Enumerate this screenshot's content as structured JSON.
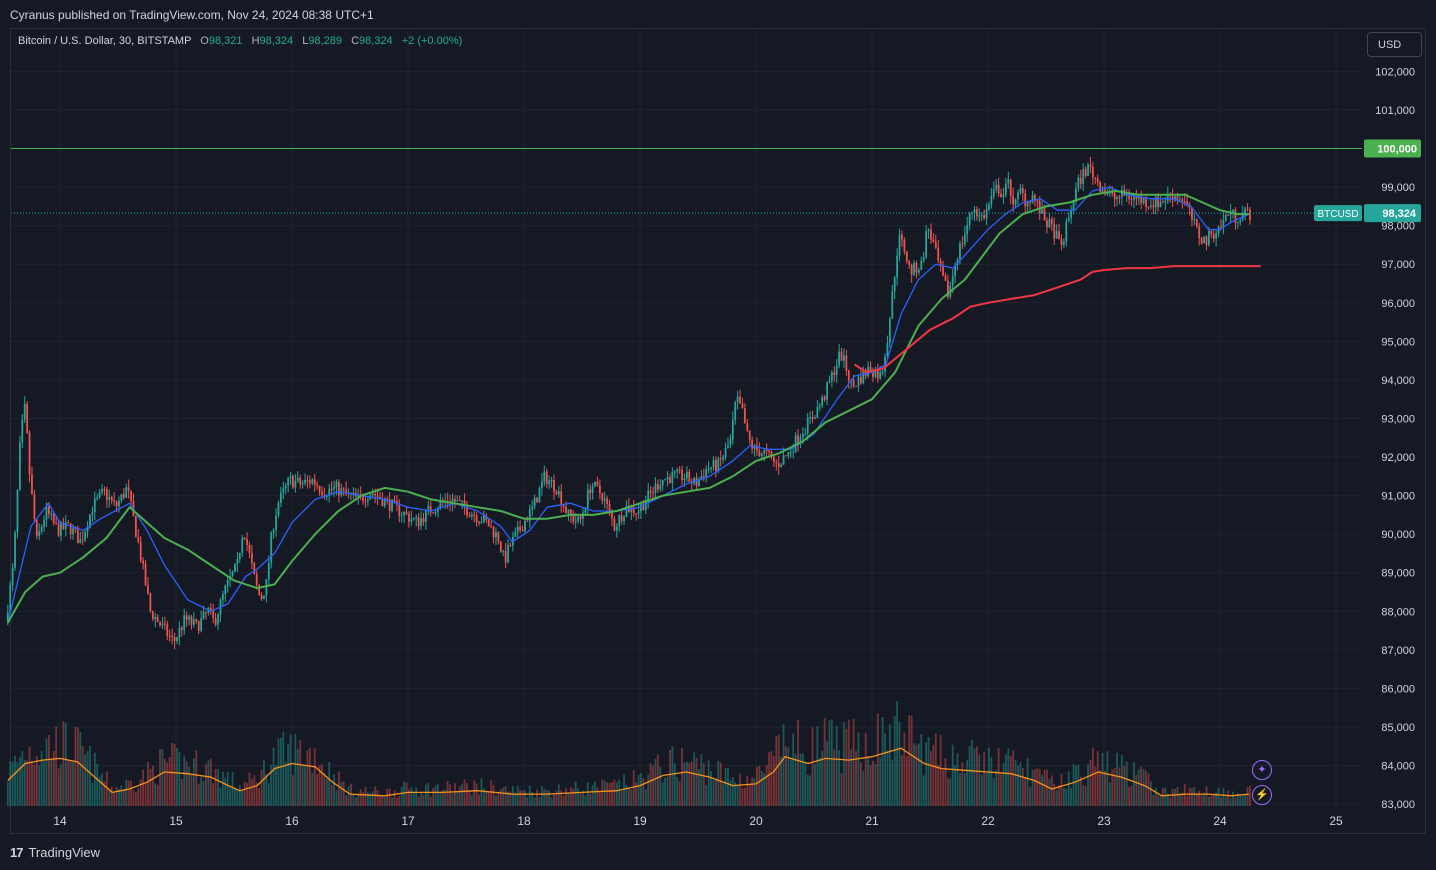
{
  "header": {
    "publisher_text": "Cyranus published on TradingView.com, Nov 24, 2024 08:38 UTC+1"
  },
  "legend": {
    "symbol_text": "Bitcoin / U.S. Dollar, 30, BITSTAMP",
    "o_label": "O",
    "o_value": "98,321",
    "h_label": "H",
    "h_value": "98,324",
    "l_label": "L",
    "l_value": "98,289",
    "c_label": "C",
    "c_value": "98,324",
    "change": "+2 (+0.00%)"
  },
  "currency_button": "USD",
  "footer": {
    "logo_mark": "17",
    "brand": "TradingView"
  },
  "tools": {
    "spark_icon": "✦",
    "bolt_icon": "⚡"
  },
  "colors": {
    "up": "#26a69a",
    "down": "#ef5350",
    "ma_fast": "#2962ff",
    "ma_mid": "#4caf50",
    "ma_slow": "#f23645",
    "volume_ma": "#f7931a",
    "level_line": "#4caf50",
    "grid": "#1f2330"
  },
  "chart_data": {
    "type": "candlestick",
    "symbol": "BTCUSD",
    "exchange": "BITSTAMP",
    "interval": "30",
    "ylim": [
      82950,
      103100
    ],
    "y_ticks": [
      {
        "value": 102000,
        "label": "102,000"
      },
      {
        "value": 101000,
        "label": "101,000"
      },
      {
        "value": 99000,
        "label": "99,000"
      },
      {
        "value": 98000,
        "label": "98,000"
      },
      {
        "value": 97000,
        "label": "97,000"
      },
      {
        "value": 96000,
        "label": "96,000"
      },
      {
        "value": 95000,
        "label": "95,000"
      },
      {
        "value": 94000,
        "label": "94,000"
      },
      {
        "value": 93000,
        "label": "93,000"
      },
      {
        "value": 92000,
        "label": "92,000"
      },
      {
        "value": 91000,
        "label": "91,000"
      },
      {
        "value": 90000,
        "label": "90,000"
      },
      {
        "value": 89000,
        "label": "89,000"
      },
      {
        "value": 88000,
        "label": "88,000"
      },
      {
        "value": 87000,
        "label": "87,000"
      },
      {
        "value": 86000,
        "label": "86,000"
      },
      {
        "value": 85000,
        "label": "85,000"
      },
      {
        "value": 84000,
        "label": "84,000"
      },
      {
        "value": 83000,
        "label": "83,000"
      }
    ],
    "x_ticks": [
      "14",
      "15",
      "16",
      "17",
      "18",
      "19",
      "20",
      "21",
      "22",
      "23",
      "24",
      "25"
    ],
    "horizontal_level": {
      "value": 100000,
      "label": "100,000"
    },
    "last_price": {
      "value": 98324,
      "label": "98,324",
      "tag": "BTCUSD"
    },
    "price_path": [
      [
        13.55,
        87700
      ],
      [
        13.62,
        89200
      ],
      [
        13.68,
        92500
      ],
      [
        13.72,
        93300
      ],
      [
        13.76,
        91500
      ],
      [
        13.82,
        89800
      ],
      [
        13.9,
        90600
      ],
      [
        14.0,
        90100
      ],
      [
        14.1,
        90200
      ],
      [
        14.2,
        89800
      ],
      [
        14.3,
        90700
      ],
      [
        14.4,
        91100
      ],
      [
        14.5,
        90700
      ],
      [
        14.6,
        91200
      ],
      [
        14.7,
        89700
      ],
      [
        14.8,
        88000
      ],
      [
        14.9,
        87600
      ],
      [
        15.0,
        87200
      ],
      [
        15.1,
        87800
      ],
      [
        15.2,
        87600
      ],
      [
        15.3,
        88000
      ],
      [
        15.35,
        87700
      ],
      [
        15.45,
        88600
      ],
      [
        15.55,
        89200
      ],
      [
        15.6,
        90200
      ],
      [
        15.7,
        88800
      ],
      [
        15.75,
        88300
      ],
      [
        15.8,
        88700
      ],
      [
        15.85,
        90100
      ],
      [
        15.9,
        90800
      ],
      [
        16.0,
        91400
      ],
      [
        16.1,
        91300
      ],
      [
        16.2,
        91400
      ],
      [
        16.3,
        91100
      ],
      [
        16.4,
        91200
      ],
      [
        16.5,
        91000
      ],
      [
        16.6,
        90900
      ],
      [
        16.7,
        91100
      ],
      [
        16.8,
        90900
      ],
      [
        16.9,
        90700
      ],
      [
        17.0,
        90500
      ],
      [
        17.1,
        90300
      ],
      [
        17.2,
        90600
      ],
      [
        17.3,
        90800
      ],
      [
        17.4,
        90900
      ],
      [
        17.5,
        90700
      ],
      [
        17.6,
        90500
      ],
      [
        17.7,
        90300
      ],
      [
        17.8,
        89900
      ],
      [
        17.85,
        89300
      ],
      [
        17.9,
        89700
      ],
      [
        18.0,
        90200
      ],
      [
        18.1,
        90700
      ],
      [
        18.2,
        91500
      ],
      [
        18.3,
        91200
      ],
      [
        18.4,
        90500
      ],
      [
        18.5,
        90300
      ],
      [
        18.6,
        91300
      ],
      [
        18.7,
        91000
      ],
      [
        18.8,
        90200
      ],
      [
        18.9,
        90700
      ],
      [
        19.0,
        90600
      ],
      [
        19.1,
        91000
      ],
      [
        19.2,
        91400
      ],
      [
        19.3,
        91500
      ],
      [
        19.4,
        91500
      ],
      [
        19.5,
        91300
      ],
      [
        19.6,
        91700
      ],
      [
        19.7,
        91800
      ],
      [
        19.8,
        92400
      ],
      [
        19.85,
        93500
      ],
      [
        19.9,
        93200
      ],
      [
        19.95,
        92500
      ],
      [
        20.0,
        92200
      ],
      [
        20.1,
        92100
      ],
      [
        20.2,
        91800
      ],
      [
        20.3,
        92100
      ],
      [
        20.4,
        92600
      ],
      [
        20.5,
        93000
      ],
      [
        20.6,
        93500
      ],
      [
        20.7,
        94300
      ],
      [
        20.75,
        94700
      ],
      [
        20.8,
        94300
      ],
      [
        20.85,
        93800
      ],
      [
        20.9,
        94000
      ],
      [
        21.0,
        94300
      ],
      [
        21.1,
        94100
      ],
      [
        21.15,
        95000
      ],
      [
        21.2,
        96300
      ],
      [
        21.25,
        97700
      ],
      [
        21.3,
        97400
      ],
      [
        21.35,
        96800
      ],
      [
        21.45,
        97000
      ],
      [
        21.5,
        98000
      ],
      [
        21.55,
        97500
      ],
      [
        21.62,
        96700
      ],
      [
        21.68,
        96200
      ],
      [
        21.75,
        97200
      ],
      [
        21.8,
        97600
      ],
      [
        21.85,
        98100
      ],
      [
        21.9,
        98500
      ],
      [
        21.95,
        98200
      ],
      [
        22.0,
        98300
      ],
      [
        22.05,
        98700
      ],
      [
        22.1,
        99000
      ],
      [
        22.15,
        98800
      ],
      [
        22.2,
        99100
      ],
      [
        22.25,
        98500
      ],
      [
        22.3,
        98900
      ],
      [
        22.35,
        98600
      ],
      [
        22.4,
        98800
      ],
      [
        22.5,
        98200
      ],
      [
        22.6,
        97800
      ],
      [
        22.65,
        97400
      ],
      [
        22.7,
        98000
      ],
      [
        22.75,
        98600
      ],
      [
        22.8,
        99100
      ],
      [
        22.85,
        99400
      ],
      [
        22.9,
        99500
      ],
      [
        22.95,
        99200
      ],
      [
        23.0,
        99000
      ],
      [
        23.1,
        98700
      ],
      [
        23.2,
        98800
      ],
      [
        23.3,
        98700
      ],
      [
        23.4,
        98600
      ],
      [
        23.5,
        98600
      ],
      [
        23.6,
        98800
      ],
      [
        23.7,
        98700
      ],
      [
        23.75,
        98400
      ],
      [
        23.8,
        98000
      ],
      [
        23.85,
        97700
      ],
      [
        23.9,
        97600
      ],
      [
        23.95,
        97800
      ],
      [
        24.0,
        97900
      ],
      [
        24.05,
        98100
      ],
      [
        24.1,
        98400
      ],
      [
        24.15,
        98200
      ],
      [
        24.2,
        98300
      ],
      [
        24.25,
        98324
      ]
    ],
    "ma_fast": [
      [
        13.55,
        87700
      ],
      [
        13.75,
        90200
      ],
      [
        13.9,
        90800
      ],
      [
        14.0,
        90300
      ],
      [
        14.2,
        90100
      ],
      [
        14.35,
        90400
      ],
      [
        14.6,
        90800
      ],
      [
        14.75,
        90100
      ],
      [
        14.9,
        89200
      ],
      [
        15.1,
        88300
      ],
      [
        15.3,
        88000
      ],
      [
        15.45,
        88200
      ],
      [
        15.6,
        88900
      ],
      [
        15.7,
        89100
      ],
      [
        15.85,
        89500
      ],
      [
        16.0,
        90300
      ],
      [
        16.2,
        90900
      ],
      [
        16.4,
        91100
      ],
      [
        16.6,
        91000
      ],
      [
        16.8,
        90900
      ],
      [
        17.0,
        90700
      ],
      [
        17.2,
        90600
      ],
      [
        17.4,
        90800
      ],
      [
        17.6,
        90600
      ],
      [
        17.8,
        90200
      ],
      [
        17.9,
        89800
      ],
      [
        18.05,
        90100
      ],
      [
        18.2,
        90700
      ],
      [
        18.4,
        90800
      ],
      [
        18.6,
        90600
      ],
      [
        18.8,
        90600
      ],
      [
        19.0,
        90700
      ],
      [
        19.2,
        91000
      ],
      [
        19.4,
        91300
      ],
      [
        19.6,
        91500
      ],
      [
        19.8,
        91900
      ],
      [
        19.95,
        92300
      ],
      [
        20.1,
        92200
      ],
      [
        20.3,
        92200
      ],
      [
        20.5,
        92600
      ],
      [
        20.7,
        93500
      ],
      [
        20.85,
        94100
      ],
      [
        21.0,
        94200
      ],
      [
        21.12,
        94400
      ],
      [
        21.25,
        95700
      ],
      [
        21.4,
        96600
      ],
      [
        21.55,
        97000
      ],
      [
        21.7,
        96900
      ],
      [
        21.85,
        97400
      ],
      [
        22.0,
        97900
      ],
      [
        22.15,
        98300
      ],
      [
        22.3,
        98600
      ],
      [
        22.45,
        98700
      ],
      [
        22.6,
        98400
      ],
      [
        22.75,
        98400
      ],
      [
        22.9,
        98900
      ],
      [
        23.05,
        99000
      ],
      [
        23.2,
        98800
      ],
      [
        23.4,
        98700
      ],
      [
        23.6,
        98700
      ],
      [
        23.75,
        98500
      ],
      [
        23.9,
        97900
      ],
      [
        24.0,
        97900
      ],
      [
        24.1,
        98100
      ],
      [
        24.25,
        98300
      ]
    ],
    "ma_mid": [
      [
        13.55,
        87700
      ],
      [
        13.7,
        88500
      ],
      [
        13.85,
        88900
      ],
      [
        14.0,
        89000
      ],
      [
        14.2,
        89400
      ],
      [
        14.4,
        89900
      ],
      [
        14.6,
        90700
      ],
      [
        14.75,
        90300
      ],
      [
        14.9,
        89900
      ],
      [
        15.1,
        89600
      ],
      [
        15.3,
        89200
      ],
      [
        15.5,
        88800
      ],
      [
        15.7,
        88600
      ],
      [
        15.85,
        88700
      ],
      [
        16.0,
        89300
      ],
      [
        16.2,
        90000
      ],
      [
        16.4,
        90600
      ],
      [
        16.6,
        91000
      ],
      [
        16.8,
        91200
      ],
      [
        17.0,
        91100
      ],
      [
        17.2,
        90900
      ],
      [
        17.4,
        90800
      ],
      [
        17.6,
        90700
      ],
      [
        17.8,
        90600
      ],
      [
        18.0,
        90400
      ],
      [
        18.2,
        90400
      ],
      [
        18.4,
        90500
      ],
      [
        18.6,
        90500
      ],
      [
        18.8,
        90600
      ],
      [
        19.0,
        90800
      ],
      [
        19.2,
        91000
      ],
      [
        19.4,
        91100
      ],
      [
        19.6,
        91200
      ],
      [
        19.8,
        91500
      ],
      [
        20.0,
        91900
      ],
      [
        20.2,
        92100
      ],
      [
        20.4,
        92400
      ],
      [
        20.6,
        92900
      ],
      [
        20.8,
        93200
      ],
      [
        21.0,
        93500
      ],
      [
        21.2,
        94200
      ],
      [
        21.4,
        95400
      ],
      [
        21.6,
        96100
      ],
      [
        21.8,
        96600
      ],
      [
        21.95,
        97200
      ],
      [
        22.1,
        97800
      ],
      [
        22.3,
        98300
      ],
      [
        22.5,
        98500
      ],
      [
        22.7,
        98600
      ],
      [
        22.9,
        98800
      ],
      [
        23.1,
        98900
      ],
      [
        23.3,
        98800
      ],
      [
        23.5,
        98800
      ],
      [
        23.7,
        98800
      ],
      [
        23.85,
        98600
      ],
      [
        24.0,
        98400
      ],
      [
        24.15,
        98300
      ],
      [
        24.25,
        98300
      ]
    ],
    "ma_slow": [
      [
        20.85,
        94400
      ],
      [
        20.95,
        94200
      ],
      [
        21.1,
        94300
      ],
      [
        21.3,
        94800
      ],
      [
        21.5,
        95300
      ],
      [
        21.7,
        95600
      ],
      [
        21.85,
        95900
      ],
      [
        22.0,
        96000
      ],
      [
        22.2,
        96100
      ],
      [
        22.4,
        96200
      ],
      [
        22.6,
        96400
      ],
      [
        22.8,
        96600
      ],
      [
        22.9,
        96800
      ],
      [
        23.0,
        96850
      ],
      [
        23.2,
        96900
      ],
      [
        23.4,
        96900
      ],
      [
        23.6,
        96950
      ],
      [
        23.8,
        96950
      ],
      [
        24.0,
        96950
      ],
      [
        24.2,
        96950
      ],
      [
        24.35,
        96950
      ]
    ],
    "volume": {
      "shown": true,
      "ma_color": "#f7931a",
      "ma_path": [
        [
          13.55,
          0.15
        ],
        [
          13.7,
          0.25
        ],
        [
          13.85,
          0.27
        ],
        [
          14.0,
          0.28
        ],
        [
          14.15,
          0.26
        ],
        [
          14.3,
          0.17
        ],
        [
          14.45,
          0.08
        ],
        [
          14.6,
          0.1
        ],
        [
          14.75,
          0.14
        ],
        [
          14.9,
          0.2
        ],
        [
          15.1,
          0.19
        ],
        [
          15.3,
          0.17
        ],
        [
          15.45,
          0.12
        ],
        [
          15.55,
          0.09
        ],
        [
          15.7,
          0.12
        ],
        [
          15.85,
          0.22
        ],
        [
          16.0,
          0.25
        ],
        [
          16.2,
          0.23
        ],
        [
          16.35,
          0.14
        ],
        [
          16.5,
          0.07
        ],
        [
          16.8,
          0.06
        ],
        [
          17.0,
          0.08
        ],
        [
          17.3,
          0.08
        ],
        [
          17.6,
          0.09
        ],
        [
          17.9,
          0.07
        ],
        [
          18.2,
          0.07
        ],
        [
          18.5,
          0.08
        ],
        [
          18.8,
          0.09
        ],
        [
          19.0,
          0.12
        ],
        [
          19.2,
          0.18
        ],
        [
          19.4,
          0.2
        ],
        [
          19.6,
          0.17
        ],
        [
          19.8,
          0.12
        ],
        [
          20.0,
          0.13
        ],
        [
          20.15,
          0.2
        ],
        [
          20.25,
          0.29
        ],
        [
          20.45,
          0.25
        ],
        [
          20.6,
          0.28
        ],
        [
          20.8,
          0.27
        ],
        [
          21.0,
          0.29
        ],
        [
          21.25,
          0.34
        ],
        [
          21.45,
          0.25
        ],
        [
          21.6,
          0.22
        ],
        [
          21.8,
          0.21
        ],
        [
          22.0,
          0.2
        ],
        [
          22.2,
          0.19
        ],
        [
          22.4,
          0.15
        ],
        [
          22.55,
          0.1
        ],
        [
          22.75,
          0.14
        ],
        [
          22.95,
          0.2
        ],
        [
          23.15,
          0.17
        ],
        [
          23.35,
          0.12
        ],
        [
          23.5,
          0.06
        ],
        [
          23.7,
          0.07
        ],
        [
          23.9,
          0.07
        ],
        [
          24.1,
          0.06
        ],
        [
          24.25,
          0.07
        ]
      ]
    }
  }
}
